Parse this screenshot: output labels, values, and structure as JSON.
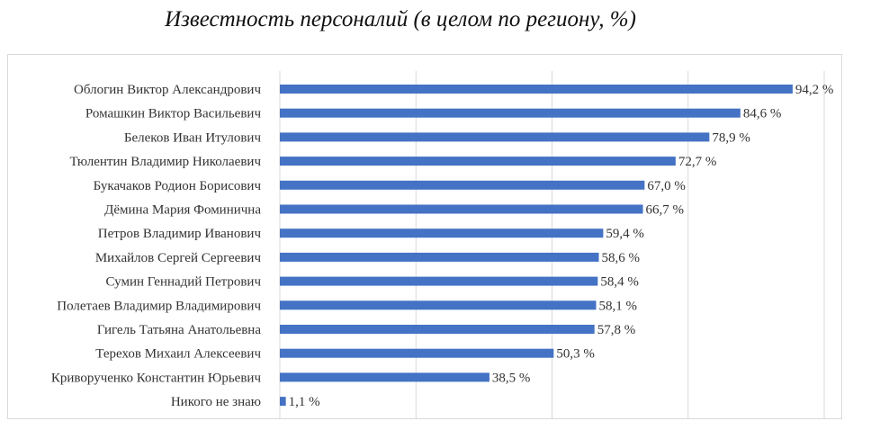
{
  "chart_data": {
    "type": "bar",
    "orientation": "horizontal",
    "title": "Известность персоналий (в целом по региону, %)",
    "xlabel": "",
    "ylabel": "",
    "xlim": [
      0,
      100
    ],
    "grid": true,
    "legend": "none",
    "value_suffix": " %",
    "categories": [
      "Облогин Виктор Александрович",
      "Ромашкин Виктор Васильевич",
      "Белеков Иван Итулович",
      "Тюлентин Владимир Николаевич",
      "Букачаков Родион Борисович",
      "Дёмина Мария Фоминична",
      "Петров Владимир Иванович",
      "Михайлов Сергей Сергеевич",
      "Сумин Геннадий Петрович",
      "Полетаев Владимир Владимирович",
      "Гигель Татьяна Анатольевна",
      "Терехов Михаил Алексеевич",
      "Криворученко Константин Юрьевич",
      "Никого не знаю"
    ],
    "values": [
      94.2,
      84.6,
      78.9,
      72.7,
      67.0,
      66.7,
      59.4,
      58.6,
      58.4,
      58.1,
      57.8,
      50.3,
      38.5,
      1.1
    ],
    "data_labels": [
      "94,2 %",
      "84,6 %",
      "78,9 %",
      "72,7 %",
      "67,0 %",
      "66,7 %",
      "59,4 %",
      "58,6 %",
      "58,4 %",
      "58,1 %",
      "57,8 %",
      "50,3 %",
      "38,5 %",
      "1,1 %"
    ]
  },
  "colors": {
    "bar": "#4472c4",
    "grid": "#d9d9d9",
    "text": "#333333"
  }
}
